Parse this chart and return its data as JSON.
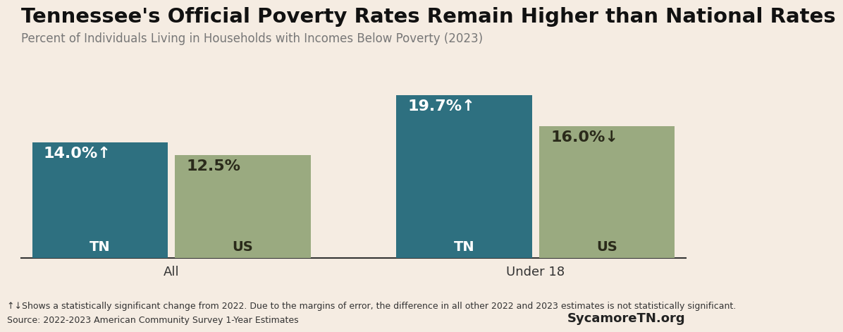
{
  "title": "Tennessee's Official Poverty Rates Remain Higher than National Rates",
  "subtitle": "Percent of Individuals Living in Households with Incomes Below Poverty (2023)",
  "background_color": "#f5ece2",
  "tn_color": "#2e7080",
  "us_color": "#9aaa80",
  "groups": [
    "All",
    "Under 18"
  ],
  "bars": [
    {
      "group": "All",
      "label": "TN",
      "value": 14.0,
      "display": "14.0%↑",
      "color": "tn",
      "text_color": "#ffffff",
      "label_color": "#ffffff"
    },
    {
      "group": "All",
      "label": "US",
      "value": 12.5,
      "display": "12.5%",
      "color": "us",
      "text_color": "#2a2a1a",
      "label_color": "#2a2a1a"
    },
    {
      "group": "Under 18",
      "label": "TN",
      "value": 19.7,
      "display": "19.7%↑",
      "color": "tn",
      "text_color": "#ffffff",
      "label_color": "#ffffff"
    },
    {
      "group": "Under 18",
      "label": "US",
      "value": 16.0,
      "display": "16.0%↓",
      "color": "us",
      "text_color": "#2a2a1a",
      "label_color": "#2a2a1a"
    }
  ],
  "footnote_line1": "↑↓Shows a statistically significant change from 2022. Due to the margins of error, the difference in all other 2022 and 2023 estimates is not statistically significant.",
  "footnote_line2": "Source: 2022-2023 American Community Survey 1-Year Estimates",
  "footnote_right": "SycamoreTN.org",
  "title_fontsize": 21,
  "subtitle_fontsize": 12,
  "footnote_fontsize": 9,
  "bar_label_fontsize": 16,
  "bar_sublabel_fontsize": 14,
  "group_label_fontsize": 13,
  "ylim": [
    0,
    24
  ],
  "group_centers": [
    1.0,
    3.55
  ],
  "positions": [
    0.5,
    1.5,
    3.05,
    4.05
  ],
  "bar_width": 0.95
}
